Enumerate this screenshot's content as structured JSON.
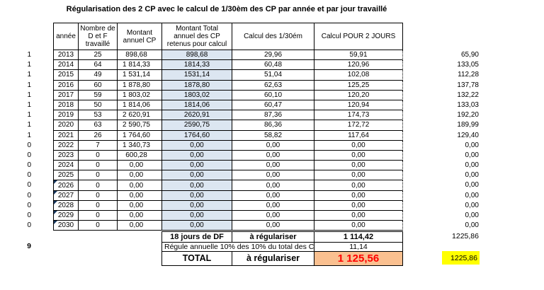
{
  "title": "Régularisation des 2 CP avec le calcul de 1/30èm des CP par année et par jour travaillé",
  "colors": {
    "highlight_column": "#DCE6F1",
    "total_fill": "#FAC090",
    "total_text": "#FF0000",
    "highlight_cell": "#FFFF00",
    "note_indicator": "#17375E"
  },
  "table": {
    "headers": {
      "annee": "année",
      "jours": "Nombre de\nD et F\ntravaillé",
      "montant": "Montant\nannuel CP",
      "total": "Montant Total\nannuel des  CP\nretenus pour calcul",
      "t30": "Calcul des 1/30ém",
      "j2": "Calcul POUR 2 JOURS"
    },
    "rows": [
      {
        "flag": "1",
        "annee": "2013",
        "jours": "25",
        "montant": "898,68",
        "total": "898,68",
        "t30": "29,96",
        "j2": "59,91",
        "droite": "65,90",
        "note": false
      },
      {
        "flag": "1",
        "annee": "2014",
        "jours": "64",
        "montant": "1 814,33",
        "total": "1814,33",
        "t30": "60,48",
        "j2": "120,96",
        "droite": "133,05",
        "note": false
      },
      {
        "flag": "1",
        "annee": "2015",
        "jours": "49",
        "montant": "1 531,14",
        "total": "1531,14",
        "t30": "51,04",
        "j2": "102,08",
        "droite": "112,28",
        "note": false
      },
      {
        "flag": "1",
        "annee": "2016",
        "jours": "60",
        "montant": "1 878,80",
        "total": "1878,80",
        "t30": "62,63",
        "j2": "125,25",
        "droite": "137,78",
        "note": false
      },
      {
        "flag": "1",
        "annee": "2017",
        "jours": "59",
        "montant": "1 803,02",
        "total": "1803,02",
        "t30": "60,10",
        "j2": "120,20",
        "droite": "132,22",
        "note": false
      },
      {
        "flag": "1",
        "annee": "2018",
        "jours": "50",
        "montant": "1 814,06",
        "total": "1814,06",
        "t30": "60,47",
        "j2": "120,94",
        "droite": "133,03",
        "note": false
      },
      {
        "flag": "1",
        "annee": "2019",
        "jours": "53",
        "montant": "2 620,91",
        "total": "2620,91",
        "t30": "87,36",
        "j2": "174,73",
        "droite": "192,20",
        "note": false
      },
      {
        "flag": "1",
        "annee": "2020",
        "jours": "63",
        "montant": "2 590,75",
        "total": "2590,75",
        "t30": "86,36",
        "j2": "172,72",
        "droite": "189,99",
        "note": false
      },
      {
        "flag": "1",
        "annee": "2021",
        "jours": "26",
        "montant": "1 764,60",
        "total": "1764,60",
        "t30": "58,82",
        "j2": "117,64",
        "droite": "129,40",
        "note": false
      },
      {
        "flag": "0",
        "annee": "2022",
        "jours": "7",
        "montant": "1 340,73",
        "total": "0,00",
        "t30": "0,00",
        "j2": "0,00",
        "droite": "0,00",
        "note": false
      },
      {
        "flag": "0",
        "annee": "2023",
        "jours": "0",
        "montant": "600,28",
        "total": "0,00",
        "t30": "0,00",
        "j2": "0,00",
        "droite": "0,00",
        "note": false
      },
      {
        "flag": "0",
        "annee": "2024",
        "jours": "0",
        "montant": "0,00",
        "total": "0,00",
        "t30": "0,00",
        "j2": "0,00",
        "droite": "0,00",
        "note": false
      },
      {
        "flag": "0",
        "annee": "2025",
        "jours": "0",
        "montant": "0,00",
        "total": "0,00",
        "t30": "0,00",
        "j2": "0,00",
        "droite": "0,00",
        "note": false
      },
      {
        "flag": "0",
        "annee": "2026",
        "jours": "0",
        "montant": "0,00",
        "total": "0,00",
        "t30": "0,00",
        "j2": "0,00",
        "droite": "0,00",
        "note": true
      },
      {
        "flag": "0",
        "annee": "2027",
        "jours": "0",
        "montant": "0,00",
        "total": "0,00",
        "t30": "0,00",
        "j2": "0,00",
        "droite": "0,00",
        "note": true
      },
      {
        "flag": "0",
        "annee": "2028",
        "jours": "0",
        "montant": "0,00",
        "total": "0,00",
        "t30": "0,00",
        "j2": "0,00",
        "droite": "0,00",
        "note": true
      },
      {
        "flag": "0",
        "annee": "2029",
        "jours": "0",
        "montant": "0,00",
        "total": "0,00",
        "t30": "0,00",
        "j2": "0,00",
        "droite": "0,00",
        "note": true
      },
      {
        "flag": "0",
        "annee": "2030",
        "jours": "0",
        "montant": "0,00",
        "total": "0,00",
        "t30": "0,00",
        "j2": "0,00",
        "droite": "0,00",
        "note": true
      }
    ]
  },
  "summary": {
    "r1": {
      "label": "18 jours de DF",
      "mid": "à régulariser",
      "value": "1 114,42",
      "outside": "1225,86"
    },
    "r2": {
      "flag": "9",
      "label": "Régule annuelle 10% des 10% du total des C",
      "value": "11,14"
    },
    "r3": {
      "label": "TOTAL",
      "mid": "à régulariser",
      "value": "1 125,56",
      "outside": "1225,86"
    }
  }
}
